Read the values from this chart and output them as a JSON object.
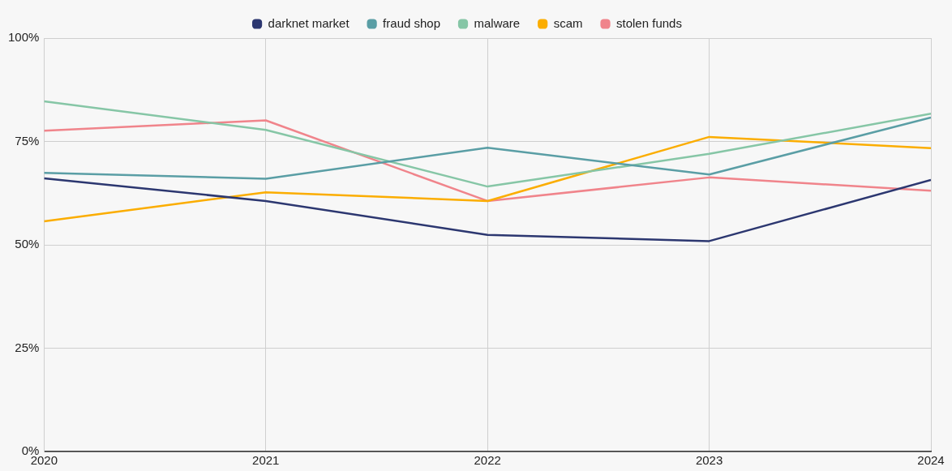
{
  "chart_data": {
    "type": "line",
    "x": [
      2020,
      2021,
      2022,
      2023,
      2024
    ],
    "xlim": [
      2020,
      2024
    ],
    "xticks": [
      2020,
      2021,
      2022,
      2023,
      2024
    ],
    "ylim": [
      0,
      100
    ],
    "yticks": [
      {
        "value": 0,
        "label": "0%"
      },
      {
        "value": 25,
        "label": "25%"
      },
      {
        "value": 50,
        "label": "50%"
      },
      {
        "value": 75,
        "label": "75%"
      },
      {
        "value": 100,
        "label": "100%"
      }
    ],
    "grid": true,
    "legend": "top",
    "marker": "none",
    "line_style": "solid",
    "series": [
      {
        "name": "darknet market",
        "color": "#2c3770",
        "values": [
          66.1,
          60.6,
          52.4,
          50.9,
          65.7
        ]
      },
      {
        "name": "fraud shop",
        "color": "#5a9ea5",
        "values": [
          67.4,
          66.0,
          73.5,
          67.0,
          80.8
        ]
      },
      {
        "name": "malware",
        "color": "#86c6a6",
        "values": [
          84.7,
          77.8,
          64.1,
          72.0,
          81.7
        ]
      },
      {
        "name": "scam",
        "color": "#fbad00",
        "values": [
          55.7,
          62.7,
          60.6,
          76.1,
          73.4
        ]
      },
      {
        "name": "stolen funds",
        "color": "#f0848b",
        "values": [
          77.6,
          80.1,
          60.6,
          66.3,
          63.1
        ]
      }
    ]
  }
}
